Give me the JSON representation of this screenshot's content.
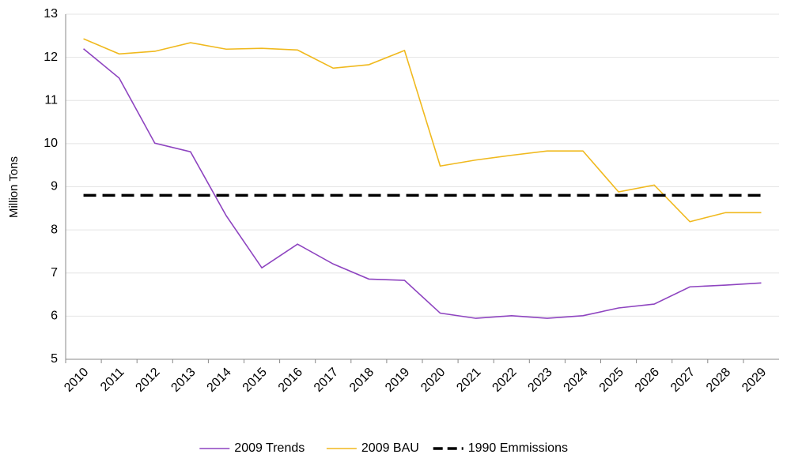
{
  "chart_data": {
    "type": "line",
    "y_label": "Million Tons",
    "categories": [
      "2010",
      "2011",
      "2012",
      "2013",
      "2014",
      "2015",
      "2016",
      "2017",
      "2018",
      "2019",
      "2020",
      "2021",
      "2022",
      "2023",
      "2024",
      "2025",
      "2026",
      "2027",
      "2028",
      "2029"
    ],
    "series": [
      {
        "name": "2009 Trends",
        "color": "#8e44c0",
        "dash": false,
        "values": [
          12.2,
          11.52,
          10.01,
          9.81,
          8.33,
          7.12,
          7.67,
          7.21,
          6.86,
          6.83,
          6.07,
          5.95,
          6.01,
          5.95,
          6.01,
          6.19,
          6.28,
          6.68,
          6.72,
          6.77
        ]
      },
      {
        "name": "2009 BAU",
        "color": "#f0b91e",
        "dash": false,
        "values": [
          12.43,
          12.08,
          12.14,
          12.34,
          12.19,
          12.21,
          12.17,
          11.75,
          11.83,
          12.16,
          9.48,
          9.62,
          9.73,
          9.83,
          9.83,
          8.88,
          9.04,
          8.19,
          8.4,
          8.4
        ]
      },
      {
        "name": "1990 Emmissions",
        "color": "#000000",
        "dash": true,
        "values": [
          8.8,
          8.8,
          8.8,
          8.8,
          8.8,
          8.8,
          8.8,
          8.8,
          8.8,
          8.8,
          8.8,
          8.8,
          8.8,
          8.8,
          8.8,
          8.8,
          8.8,
          8.8,
          8.8,
          8.8
        ]
      }
    ],
    "ylim": [
      5,
      13
    ],
    "yticks": [
      5,
      6,
      7,
      8,
      9,
      10,
      11,
      12,
      13
    ],
    "grid": true,
    "legend": "bottom"
  }
}
